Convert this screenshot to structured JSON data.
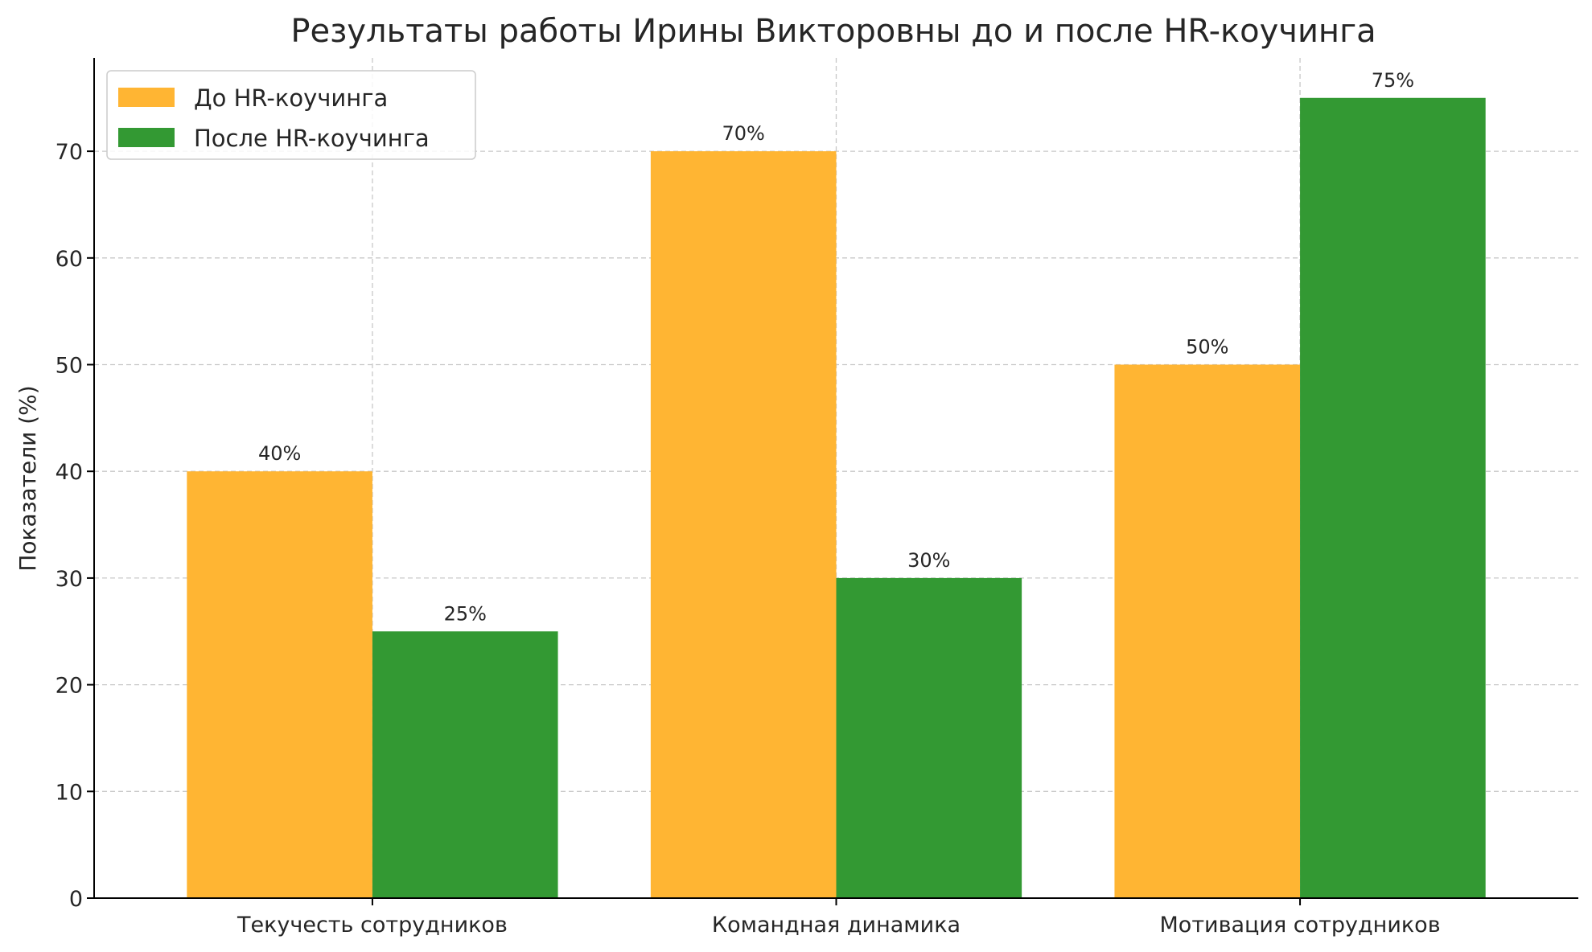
{
  "chart_data": {
    "type": "bar",
    "title": "Результаты работы Ирины Викторовны до и после HR-коучинга",
    "xlabel": "",
    "ylabel": "Показатели (%)",
    "categories": [
      "Текучесть сотрудников",
      "Командная динамика",
      "Мотивация сотрудников"
    ],
    "series": [
      {
        "name": "До HR-коучинга",
        "color": "#FFB533",
        "values": [
          40,
          70,
          50
        ],
        "labels": [
          "40%",
          "70%",
          "50%"
        ]
      },
      {
        "name": "После HR-коучинга",
        "color": "#339933",
        "values": [
          25,
          30,
          75
        ],
        "labels": [
          "25%",
          "30%",
          "75%"
        ]
      }
    ],
    "ylim": [
      0,
      78.75
    ],
    "yticks": [
      0,
      10,
      20,
      30,
      40,
      50,
      60,
      70
    ],
    "grid": true,
    "legend_position": "top-left"
  }
}
